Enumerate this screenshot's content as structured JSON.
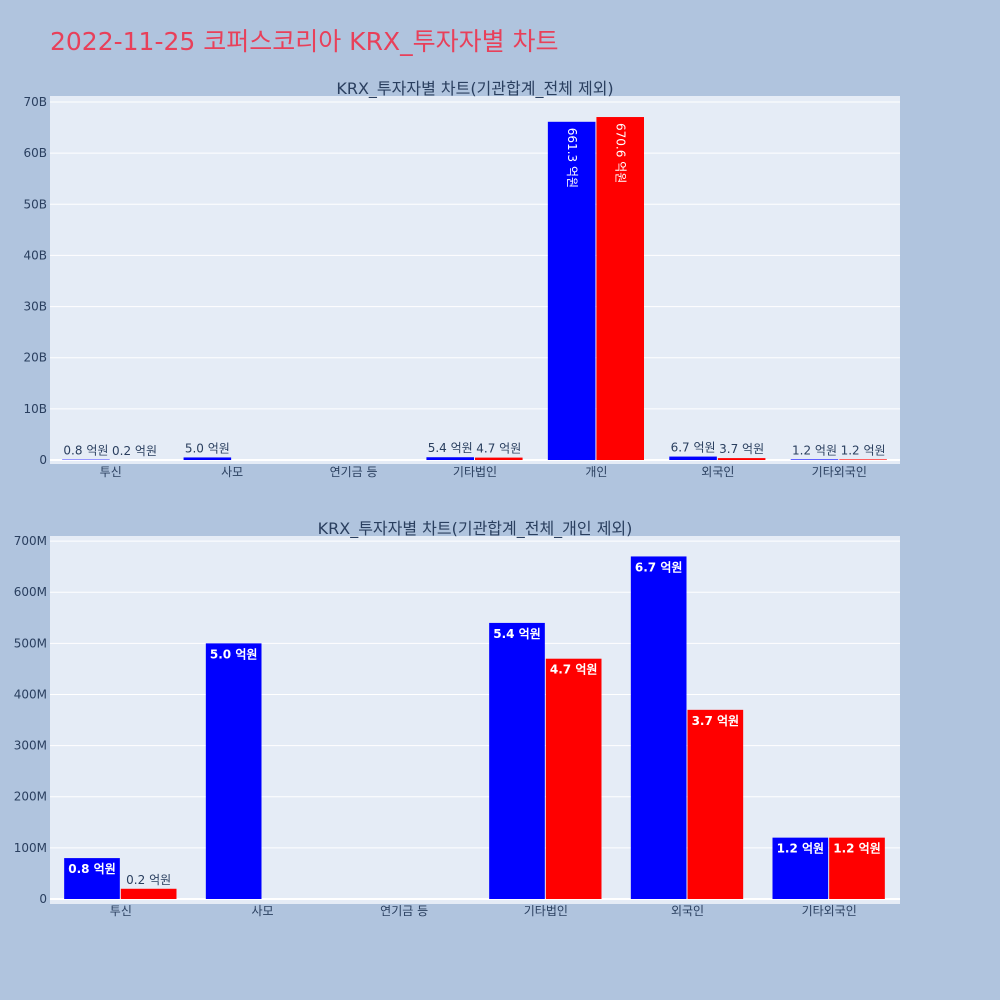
{
  "title": "2022-11-25 코퍼스코리아 KRX_투자자별 차트",
  "colors": {
    "page_bg": "#b0c4de",
    "plot_bg": "#e5ecf6",
    "title": "#e8405a",
    "buy": "#0000ff",
    "sell": "#ff0000",
    "text": "#2a3f5f"
  },
  "chart_data": [
    {
      "type": "bar",
      "title": "KRX_투자자별 차트(기관합계_전체 제외)",
      "categories": [
        "투신",
        "사모",
        "연기금 등",
        "기타법인",
        "개인",
        "외국인",
        "기타외국인"
      ],
      "ylim": [
        0,
        70000000000
      ],
      "yticks": [
        0,
        10000000000,
        20000000000,
        30000000000,
        40000000000,
        50000000000,
        60000000000,
        70000000000
      ],
      "ytick_labels": [
        "0",
        "10B",
        "20B",
        "30B",
        "40B",
        "50B",
        "60B",
        "70B"
      ],
      "grid": true,
      "series": [
        {
          "values": [
            80000000,
            500000000,
            0,
            540000000,
            66130000000,
            670000000,
            120000000
          ],
          "labels": [
            "0.8 억원",
            "5.0 억원",
            "",
            "5.4 억원",
            "661.3 억원",
            "6.7 억원",
            "1.2 억원"
          ]
        },
        {
          "values": [
            20000000,
            0,
            0,
            470000000,
            67060000000,
            370000000,
            120000000
          ],
          "labels": [
            "0.2 억원",
            "",
            "",
            "4.7 억원",
            "670.6 억원",
            "3.7 억원",
            "1.2 억원"
          ]
        }
      ]
    },
    {
      "type": "bar",
      "title": "KRX_투자자별 차트(기관합계_전체_개인 제외)",
      "categories": [
        "투신",
        "사모",
        "연기금 등",
        "기타법인",
        "외국인",
        "기타외국인"
      ],
      "ylim": [
        0,
        710000000
      ],
      "yticks": [
        0,
        100000000,
        200000000,
        300000000,
        400000000,
        500000000,
        600000000,
        700000000
      ],
      "ytick_labels": [
        "0",
        "100M",
        "200M",
        "300M",
        "400M",
        "500M",
        "600M",
        "700M"
      ],
      "grid": true,
      "series": [
        {
          "values": [
            80000000,
            500000000,
            0,
            540000000,
            670000000,
            120000000
          ],
          "labels": [
            "0.8 억원",
            "5.0 억원",
            "",
            "5.4 억원",
            "6.7 억원",
            "1.2 억원"
          ]
        },
        {
          "values": [
            20000000,
            0,
            0,
            470000000,
            370000000,
            120000000
          ],
          "labels": [
            "0.2 억원",
            "",
            "",
            "4.7 억원",
            "3.7 억원",
            "1.2 억원"
          ]
        }
      ]
    }
  ]
}
